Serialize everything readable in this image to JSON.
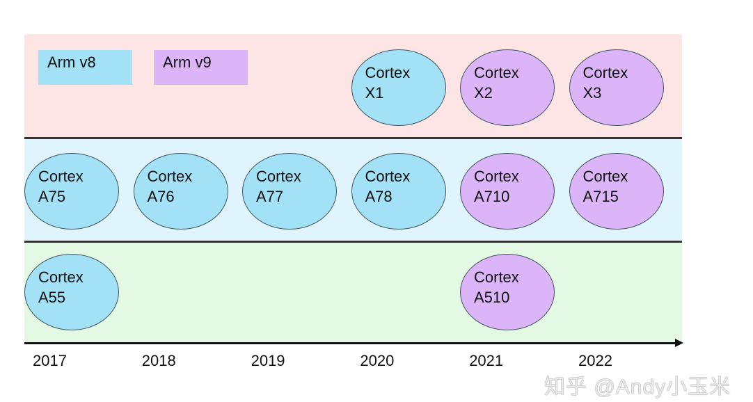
{
  "colors": {
    "v8": "#a2e1f6",
    "v9": "#dcb4f8",
    "tier_x": "#fde5e5",
    "tier_big": "#dff4fc",
    "tier_little": "#e3f9e3"
  },
  "legend": [
    {
      "label": "Arm v8",
      "arch": "v8"
    },
    {
      "label": "Arm v9",
      "arch": "v9"
    }
  ],
  "years": [
    "2017",
    "2018",
    "2019",
    "2020",
    "2021",
    "2022"
  ],
  "nodes": [
    {
      "line1": "Cortex",
      "line2": "X1",
      "year": "2020",
      "tier": "x",
      "arch": "v8"
    },
    {
      "line1": "Cortex",
      "line2": "X2",
      "year": "2021",
      "tier": "x",
      "arch": "v9"
    },
    {
      "line1": "Cortex",
      "line2": "X3",
      "year": "2022",
      "tier": "x",
      "arch": "v9"
    },
    {
      "line1": "Cortex",
      "line2": "A75",
      "year": "2017",
      "tier": "big",
      "arch": "v8"
    },
    {
      "line1": "Cortex",
      "line2": "A76",
      "year": "2018",
      "tier": "big",
      "arch": "v8"
    },
    {
      "line1": "Cortex",
      "line2": "A77",
      "year": "2019",
      "tier": "big",
      "arch": "v8"
    },
    {
      "line1": "Cortex",
      "line2": "A78",
      "year": "2020",
      "tier": "big",
      "arch": "v8"
    },
    {
      "line1": "Cortex",
      "line2": "A710",
      "year": "2021",
      "tier": "big",
      "arch": "v9"
    },
    {
      "line1": "Cortex",
      "line2": "A715",
      "year": "2022",
      "tier": "big",
      "arch": "v9"
    },
    {
      "line1": "Cortex",
      "line2": "A55",
      "year": "2017",
      "tier": "little",
      "arch": "v8"
    },
    {
      "line1": "Cortex",
      "line2": "A510",
      "year": "2021",
      "tier": "little",
      "arch": "v9"
    }
  ],
  "watermark": "知乎 @Andy小玉米"
}
